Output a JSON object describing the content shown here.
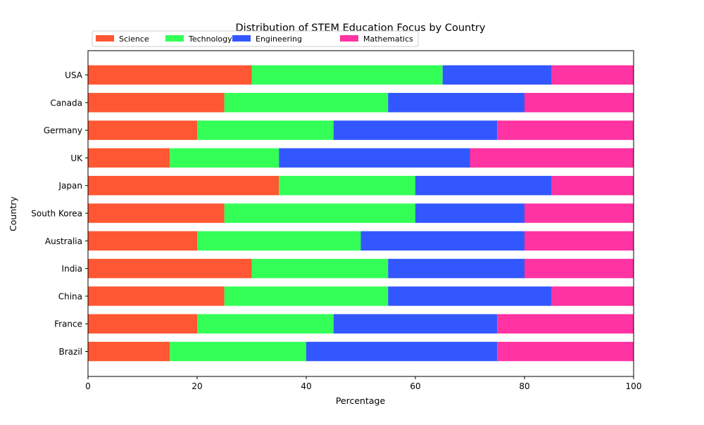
{
  "chart_data": {
    "type": "bar",
    "orientation": "horizontal",
    "stacked": true,
    "title": "Distribution of STEM Education Focus by Country",
    "xlabel": "Percentage",
    "ylabel": "Country",
    "xlim": [
      0,
      100
    ],
    "xticks": [
      0,
      20,
      40,
      60,
      80,
      100
    ],
    "grid": false,
    "legend_position": "top-left, above plot, single row",
    "categories": [
      "USA",
      "Canada",
      "Germany",
      "UK",
      "Japan",
      "South Korea",
      "Australia",
      "India",
      "China",
      "France",
      "Brazil"
    ],
    "series": [
      {
        "name": "Science",
        "color": "#ff5733",
        "values": [
          30,
          25,
          20,
          15,
          35,
          25,
          20,
          30,
          25,
          20,
          15
        ]
      },
      {
        "name": "Technology",
        "color": "#33ff57",
        "values": [
          35,
          30,
          25,
          20,
          25,
          35,
          30,
          25,
          30,
          25,
          25
        ]
      },
      {
        "name": "Engineering",
        "color": "#3357ff",
        "values": [
          20,
          25,
          30,
          35,
          25,
          20,
          30,
          25,
          30,
          30,
          35
        ]
      },
      {
        "name": "Mathematics",
        "color": "#ff33a1",
        "values": [
          15,
          20,
          25,
          30,
          15,
          20,
          20,
          20,
          15,
          25,
          25
        ]
      }
    ]
  }
}
